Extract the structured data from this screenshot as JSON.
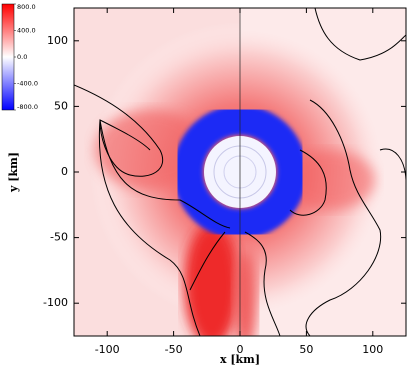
{
  "chart_data": {
    "type": "heatmap",
    "xlabel": "x [km]",
    "ylabel": "y [km]",
    "xlim": [
      -125,
      125
    ],
    "ylim": [
      -125,
      125
    ],
    "xticks": [
      -100,
      -50,
      0,
      50,
      100
    ],
    "yticks": [
      -100,
      -50,
      0,
      50,
      100
    ],
    "colorbar": {
      "lim": [
        -800,
        800
      ],
      "colors": [
        "#0000ff",
        "#ffffff",
        "#ff0000"
      ],
      "ticks": [
        {
          "value": 800,
          "label": "800.0"
        },
        {
          "value": 400,
          "label": "400.0"
        },
        {
          "value": 0,
          "label": "0.0"
        },
        {
          "value": -400,
          "label": "-400.0"
        },
        {
          "value": -800,
          "label": "-800.0"
        }
      ]
    }
  }
}
